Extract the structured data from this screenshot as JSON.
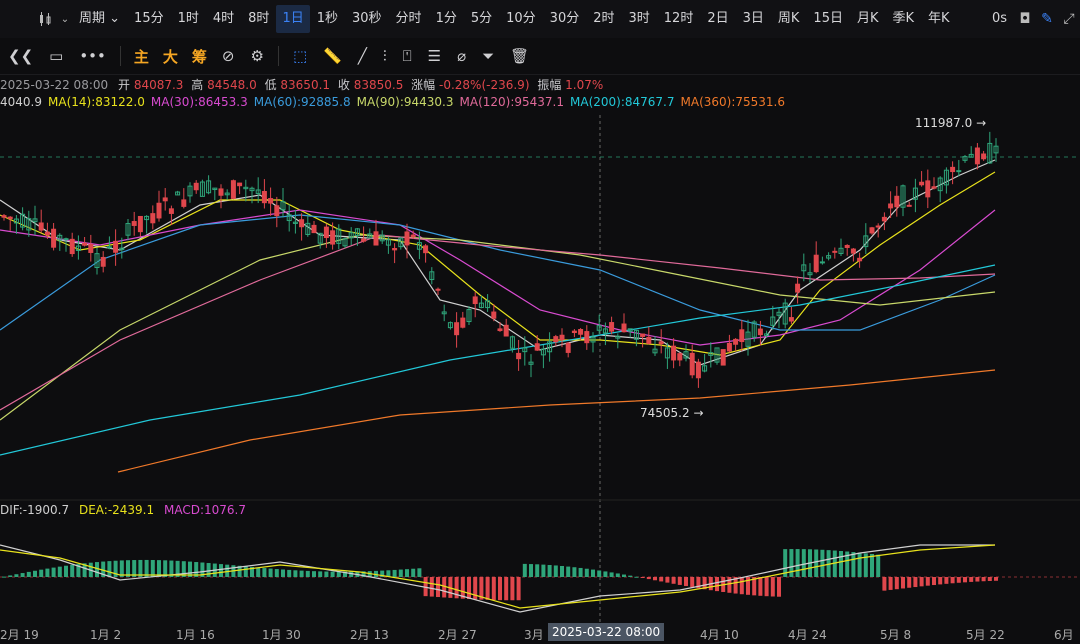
{
  "topbar": {
    "period_label": "周期",
    "intervals": [
      "15分",
      "1时",
      "4时",
      "8时",
      "1日",
      "1秒",
      "30秒",
      "分时",
      "1分",
      "5分",
      "10分",
      "30分",
      "2时",
      "3时",
      "12时",
      "2日",
      "3日",
      "周K",
      "15日",
      "月K",
      "季K",
      "年K"
    ],
    "active_interval": "1日",
    "right_text": "0s"
  },
  "toolbar": {
    "labels": [
      "主",
      "大",
      "筹"
    ]
  },
  "ohlc": {
    "date": "2025-03-22 08:00",
    "open_label": "开",
    "open": "84087.3",
    "high_label": "高",
    "high": "84548.0",
    "low_label": "低",
    "low": "83650.1",
    "close_label": "收",
    "close": "83850.5",
    "change_label": "涨幅",
    "change": "-0.28%(-236.9)",
    "amp_label": "振幅",
    "amp": "1.07%"
  },
  "ma": [
    {
      "label": "4040.9",
      "color": "#d0d0d0"
    },
    {
      "label": "MA(14):83122.0",
      "color": "#e8e21c"
    },
    {
      "label": "MA(30):86453.3",
      "color": "#d84bd0"
    },
    {
      "label": "MA(60):92885.8",
      "color": "#3a9bdc"
    },
    {
      "label": "MA(90):94430.3",
      "color": "#c8d86a"
    },
    {
      "label": "MA(120):95437.1",
      "color": "#e06a9a"
    },
    {
      "label": "MA(200):84767.7",
      "color": "#22c8d8"
    },
    {
      "label": "MA(360):75531.6",
      "color": "#f0792a"
    }
  ],
  "annotations": {
    "high_value": "111987.0",
    "low_value": "74505.2"
  },
  "macd": {
    "dif": "DIF:-1900.7",
    "dea": "DEA:-2439.1",
    "macd": "MACD:1076.7"
  },
  "x_axis": [
    "2月 19",
    "1月 2",
    "1月 16",
    "1月 30",
    "2月 13",
    "2月 27",
    "3月",
    "4月 10",
    "4月 24",
    "5月 8",
    "5月 22",
    "6月"
  ],
  "crosshair_date": "2025-03-22 08:00",
  "colors": {
    "up": "#2fa57a",
    "down": "#e0474c",
    "accent": "#3b82f6"
  }
}
